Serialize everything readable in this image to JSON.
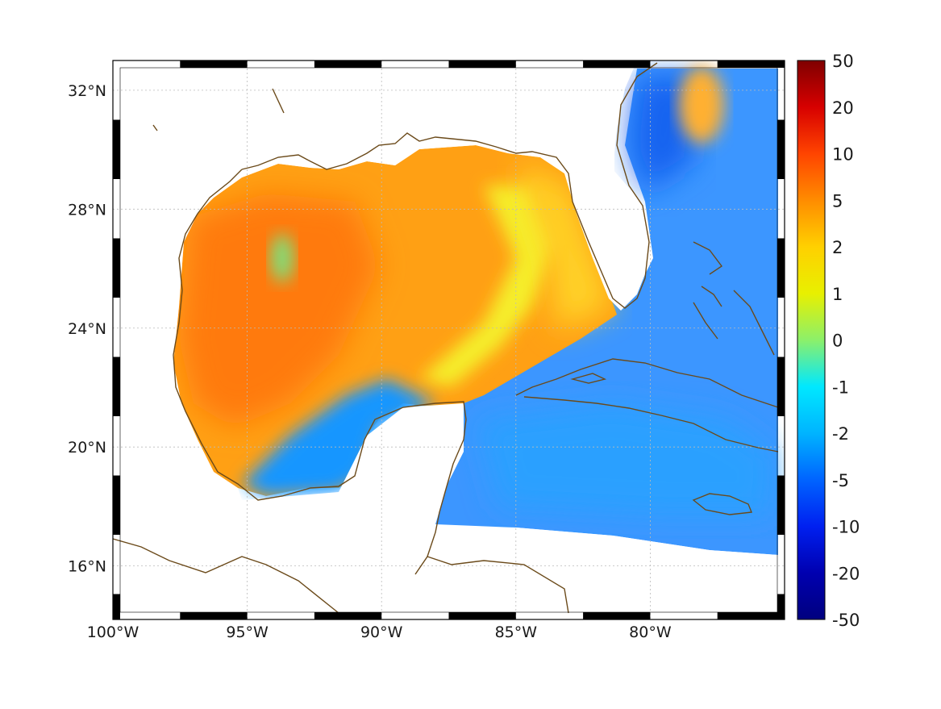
{
  "map": {
    "lon_range": [
      -100,
      -75
    ],
    "lat_range": [
      14.2,
      33.0
    ],
    "lon_ticks": [
      {
        "value": -100,
        "label": "100°W"
      },
      {
        "value": -95,
        "label": "95°W"
      },
      {
        "value": -90,
        "label": "90°W"
      },
      {
        "value": -85,
        "label": "85°W"
      },
      {
        "value": -80,
        "label": "80°W"
      }
    ],
    "lat_ticks": [
      {
        "value": 16,
        "label": "16°N"
      },
      {
        "value": 20,
        "label": "20°N"
      },
      {
        "value": 24,
        "label": "24°N"
      },
      {
        "value": 28,
        "label": "28°N"
      },
      {
        "value": 32,
        "label": "32°N"
      }
    ],
    "grid": true,
    "coastline_color": "#6b4a1a",
    "land_color": "#ffffff"
  },
  "colorbar": {
    "ticks": [
      "50",
      "20",
      "10",
      "5",
      "2",
      "1",
      "0",
      "-1",
      "-2",
      "-5",
      "-10",
      "-20",
      "-50"
    ],
    "colors": [
      "#7f0000",
      "#d70000",
      "#ff4400",
      "#ff8c00",
      "#ffd000",
      "#e8f000",
      "#8cf06a",
      "#00e8ff",
      "#00b4ff",
      "#0064ff",
      "#0020f0",
      "#0000b0",
      "#00007f"
    ]
  },
  "field_colors": {
    "west_gulf": "#ff7a10",
    "central_gulf": "#ffa014",
    "eastern_gulf": "#ffd226",
    "gulf_front": "#f5ee2a",
    "yucatan_shelf": "#1496ff",
    "caribbean": "#2aa0ff",
    "atlantic": "#3c96ff",
    "atlantic_cold": "#1464f0",
    "warm_eddy": "#ffb030",
    "cool_eddy": "#7ee07a"
  }
}
